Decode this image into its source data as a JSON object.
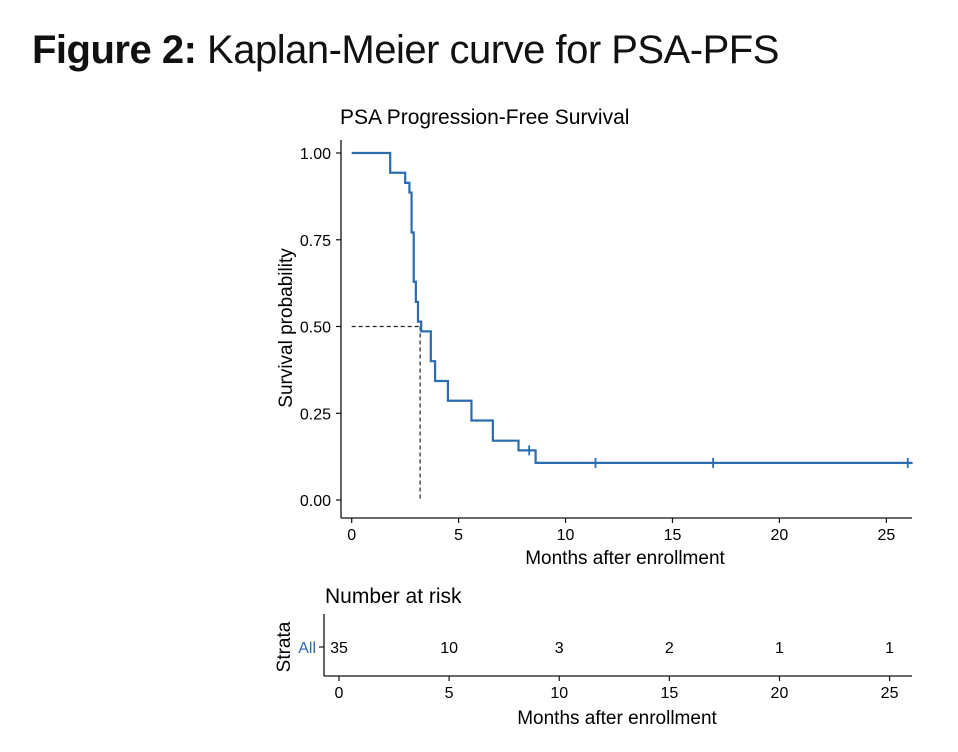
{
  "figure": {
    "label": "Figure 2:",
    "caption": "Kaplan-Meier curve for PSA-PFS"
  },
  "chart_data": [
    {
      "type": "line",
      "subtype": "kaplan-meier",
      "title": "PSA Progression-Free Survival",
      "xlabel": "Months after enrollment",
      "ylabel": "Survival probability",
      "xlim": [
        -0.5,
        26.2
      ],
      "ylim": [
        0,
        1
      ],
      "xticks": [
        0,
        5,
        10,
        15,
        20,
        25
      ],
      "xtick_labels": [
        "0",
        "5",
        "10",
        "15",
        "20",
        "25"
      ],
      "yticks": [
        0,
        0.25,
        0.5,
        0.75,
        1
      ],
      "ytick_labels": [
        "0.00",
        "0.25",
        "0.50",
        "0.75",
        "1.00"
      ],
      "grid": false,
      "color": "#2b6cb0",
      "series": [
        {
          "steps": [
            [
              0,
              1.0
            ],
            [
              1.8,
              0.943
            ],
            [
              2.5,
              0.914
            ],
            [
              2.7,
              0.886
            ],
            [
              2.8,
              0.771
            ],
            [
              2.9,
              0.629
            ],
            [
              3.0,
              0.571
            ],
            [
              3.1,
              0.514
            ],
            [
              3.25,
              0.486
            ],
            [
              3.7,
              0.4
            ],
            [
              3.9,
              0.343
            ],
            [
              4.5,
              0.286
            ],
            [
              5.6,
              0.229
            ],
            [
              6.6,
              0.171
            ],
            [
              7.8,
              0.143
            ],
            [
              8.6,
              0.107
            ],
            [
              26.2,
              0.107
            ]
          ],
          "censored": [
            [
              8.3,
              0.143
            ],
            [
              11.4,
              0.107
            ],
            [
              16.9,
              0.107
            ],
            [
              26.0,
              0.107
            ]
          ]
        }
      ],
      "median": {
        "x": 3.2,
        "y": 0.5
      }
    },
    {
      "type": "table",
      "title": "Number at risk",
      "xlabel": "Months after enrollment",
      "ylabel": "Strata",
      "strata_label": "All",
      "xticks": [
        0,
        5,
        10,
        15,
        20,
        25
      ],
      "xtick_labels": [
        "0",
        "5",
        "10",
        "15",
        "20",
        "25"
      ],
      "values": [
        "35",
        "10",
        "3",
        "2",
        "1",
        "1"
      ]
    }
  ]
}
